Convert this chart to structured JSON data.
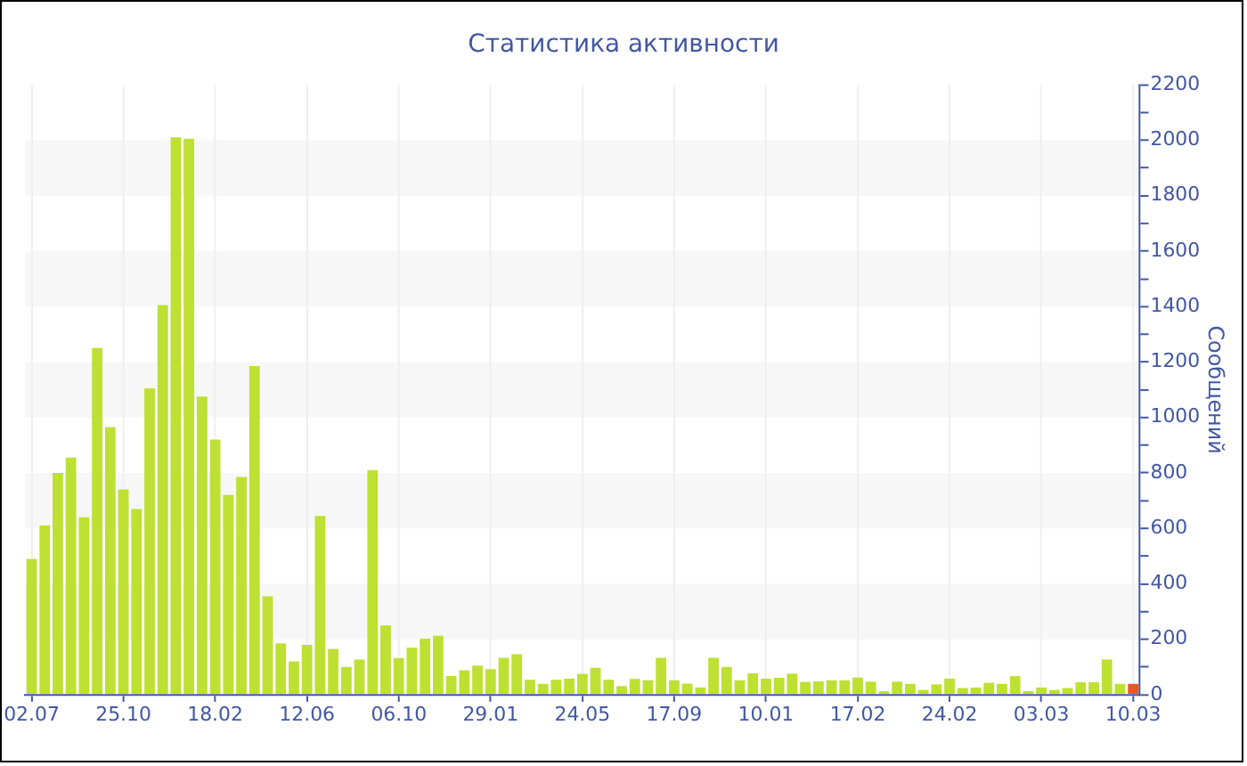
{
  "chart_data": {
    "type": "bar",
    "title": "Статистика активности",
    "ylabel": "Сообщений",
    "categories": [
      "02.07",
      null,
      null,
      null,
      null,
      null,
      null,
      "25.10",
      null,
      null,
      null,
      null,
      null,
      null,
      "18.02",
      null,
      null,
      null,
      null,
      null,
      null,
      "12.06",
      null,
      null,
      null,
      null,
      null,
      null,
      "06.10",
      null,
      null,
      null,
      null,
      null,
      null,
      "29.01",
      null,
      null,
      null,
      null,
      null,
      null,
      "24.05",
      null,
      null,
      null,
      null,
      null,
      null,
      "17.09",
      null,
      null,
      null,
      null,
      null,
      null,
      "10.01",
      null,
      null,
      null,
      null,
      null,
      null,
      "17.02",
      null,
      null,
      null,
      null,
      null,
      null,
      "24.02",
      null,
      null,
      null,
      null,
      null,
      null,
      "03.03",
      null,
      null,
      null,
      null,
      null,
      null,
      "10.03"
    ],
    "values": [
      490,
      610,
      800,
      855,
      640,
      1250,
      965,
      740,
      670,
      1105,
      1405,
      2010,
      2005,
      1075,
      920,
      720,
      785,
      1185,
      355,
      185,
      120,
      180,
      645,
      165,
      100,
      127,
      810,
      250,
      132,
      170,
      202,
      213,
      67,
      88,
      105,
      92,
      133,
      146,
      54,
      39,
      54,
      58,
      75,
      97,
      54,
      31,
      57,
      52,
      133,
      52,
      40,
      26,
      133,
      100,
      52,
      77,
      58,
      61,
      76,
      46,
      48,
      52,
      52,
      62,
      47,
      13,
      47,
      39,
      17,
      37,
      58,
      24,
      26,
      43,
      39,
      67,
      13,
      26,
      17,
      24,
      45,
      45,
      127,
      39,
      39
    ],
    "colors": [
      "#bde032",
      "#bde032",
      "#bde032",
      "#bde032",
      "#bde032",
      "#bde032",
      "#bde032",
      "#bde032",
      "#bde032",
      "#bde032",
      "#bde032",
      "#bde032",
      "#bde032",
      "#bde032",
      "#bde032",
      "#bde032",
      "#bde032",
      "#bde032",
      "#bde032",
      "#bde032",
      "#bde032",
      "#bde032",
      "#bde032",
      "#bde032",
      "#bde032",
      "#bde032",
      "#bde032",
      "#bde032",
      "#bde032",
      "#bde032",
      "#bde032",
      "#bde032",
      "#bde032",
      "#bde032",
      "#bde032",
      "#bde032",
      "#bde032",
      "#bde032",
      "#bde032",
      "#bde032",
      "#bde032",
      "#bde032",
      "#bde032",
      "#bde032",
      "#bde032",
      "#bde032",
      "#bde032",
      "#bde032",
      "#bde032",
      "#bde032",
      "#bde032",
      "#bde032",
      "#bde032",
      "#bde032",
      "#bde032",
      "#bde032",
      "#bde032",
      "#bde032",
      "#bde032",
      "#bde032",
      "#bde032",
      "#bde032",
      "#bde032",
      "#bde032",
      "#bde032",
      "#bde032",
      "#bde032",
      "#bde032",
      "#bde032",
      "#bde032",
      "#bde032",
      "#bde032",
      "#bde032",
      "#bde032",
      "#bde032",
      "#bde032",
      "#bde032",
      "#bde032",
      "#bde032",
      "#bde032",
      "#bde032",
      "#bde032",
      "#bde032",
      "#bde032",
      "#e5582c"
    ],
    "ylim": [
      0,
      2200
    ],
    "yticks": [
      0,
      {
        "value": 100,
        "label": null
      },
      200,
      {
        "value": 300,
        "label": null
      },
      400,
      {
        "value": 500,
        "label": null
      },
      600,
      {
        "value": 700,
        "label": null
      },
      800,
      {
        "value": 900,
        "label": null
      },
      1000,
      {
        "value": 1100,
        "label": null
      },
      1200,
      {
        "value": 1300,
        "label": null
      },
      1400,
      {
        "value": 1500,
        "label": null
      },
      1600,
      {
        "value": 1700,
        "label": null
      },
      1800,
      {
        "value": 1900,
        "label": null
      },
      2000,
      {
        "value": 2100,
        "label": null
      },
      2200
    ],
    "grid": true
  }
}
